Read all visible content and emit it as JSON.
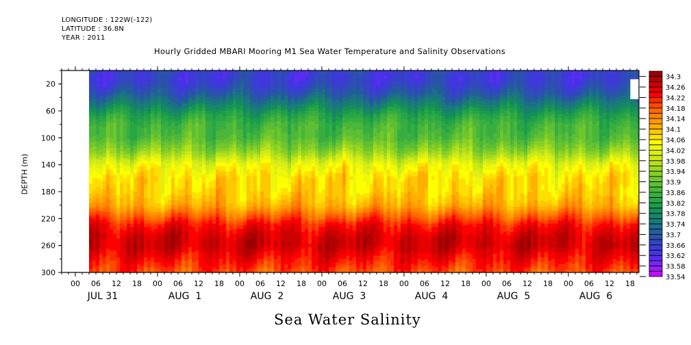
{
  "header": {
    "longitude": "LONGITUDE : 122W(-122)",
    "latitude": "LATITUDE : 36.8N",
    "year": "YEAR : 2011"
  },
  "chart_data": {
    "type": "heatmap",
    "title": "Hourly Gridded MBARI Mooring M1 Sea Water Temperature and Salinity Observations",
    "xlabel": "Sea Water Salinity",
    "ylabel": "DEPTH (m)",
    "y_ticks": [
      20,
      60,
      100,
      140,
      180,
      220,
      260,
      300
    ],
    "ylim": [
      0,
      300
    ],
    "y_inverted": true,
    "x_hour_ticks": [
      "00",
      "06",
      "12",
      "18",
      "00",
      "06",
      "12",
      "18",
      "00",
      "06",
      "12",
      "18",
      "00",
      "06",
      "12",
      "18",
      "00",
      "06",
      "12",
      "18",
      "00",
      "06",
      "12",
      "18",
      "00",
      "06",
      "12",
      "18"
    ],
    "x_day_labels": [
      "JUL 31",
      "AUG  1",
      "AUG  2",
      "AUG  3",
      "AUG  4",
      "AUG  5",
      "AUG  6"
    ],
    "x_range_hours": [
      -4,
      164.6
    ],
    "data_start_hour": 4,
    "colorbar": {
      "labels": [
        "34.3",
        "34.26",
        "34.22",
        "34.18",
        "34.14",
        "34.1",
        "34.06",
        "34.02",
        "33.98",
        "33.94",
        "33.9",
        "33.86",
        "33.82",
        "33.78",
        "33.74",
        "33.7",
        "33.66",
        "33.62",
        "33.58",
        "33.54"
      ],
      "min": 33.54,
      "max": 34.32,
      "step": 0.02,
      "colors": [
        "#9b0000",
        "#b30000",
        "#cc0000",
        "#e60000",
        "#ff0000",
        "#ff2a00",
        "#ff4a00",
        "#ff6a00",
        "#ff8200",
        "#ff9a00",
        "#ffb000",
        "#ffc800",
        "#ffe000",
        "#ffff00",
        "#eef70a",
        "#ddef14",
        "#ccea16",
        "#b5e01c",
        "#9ed820",
        "#87cf26",
        "#70c62c",
        "#5cbf34",
        "#4ab63a",
        "#38ae40",
        "#28a646",
        "#1c9d4a",
        "#178f5a",
        "#168469",
        "#187a79",
        "#1c6e89",
        "#235e9a",
        "#2a52ad",
        "#3247c0",
        "#3a3cd4",
        "#4533e6",
        "#5a2cf0",
        "#7526f5",
        "#9a1df8",
        "#c00cfa"
      ]
    },
    "depth_profile": {
      "depths": [
        0,
        10,
        20,
        35,
        50,
        65,
        80,
        100,
        120,
        140,
        160,
        180,
        200,
        215,
        230,
        245,
        260,
        275,
        290,
        300
      ],
      "mean_salinity": [
        33.66,
        33.65,
        33.66,
        33.7,
        33.76,
        33.82,
        33.86,
        33.88,
        33.94,
        34.03,
        34.07,
        34.08,
        34.11,
        34.17,
        34.23,
        34.26,
        34.27,
        34.24,
        34.21,
        34.19
      ]
    },
    "missing_regions": [
      {
        "hours": [
          -4,
          4
        ],
        "depths": [
          0,
          300
        ]
      },
      {
        "hours": [
          161.6,
          164.6
        ],
        "depths": [
          12,
          41
        ]
      }
    ]
  }
}
